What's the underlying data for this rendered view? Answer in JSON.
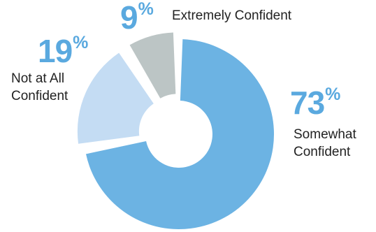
{
  "chart_data": {
    "type": "pie",
    "donut": true,
    "slices": [
      {
        "label_line1": "Somewhat",
        "label_line2": "Confident",
        "value": 73,
        "unit": "%",
        "color": "#6cb3e3"
      },
      {
        "label_line1": "Not at All",
        "label_line2": "Confident",
        "value": 19,
        "unit": "%",
        "color": "#c4dcf3"
      },
      {
        "label_line1": "Extremely Confident",
        "label_line2": "",
        "value": 9,
        "unit": "%",
        "color": "#bcc5c5"
      }
    ],
    "percent_color": "#5aa9df"
  }
}
